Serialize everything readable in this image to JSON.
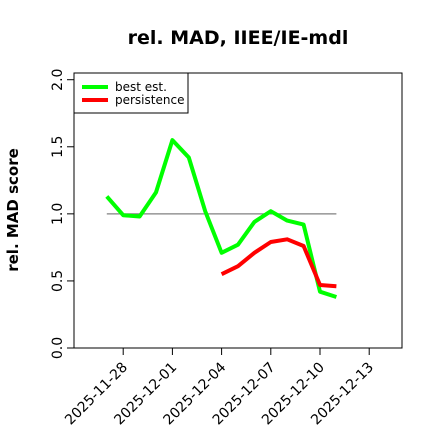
{
  "chart_data": {
    "type": "line",
    "title": "rel. MAD, IIEE/IE-mdl",
    "xlabel": "",
    "ylabel": "rel. MAD score",
    "ylim": [
      0,
      2.05
    ],
    "xlim": [
      "2025-11-25",
      "2025-12-15"
    ],
    "yticks": [
      "0.0",
      "0.5",
      "1.0",
      "1.5",
      "2.0"
    ],
    "xticks": [
      "2025-11-28",
      "2025-12-01",
      "2025-12-04",
      "2025-12-07",
      "2025-12-10",
      "2025-12-13"
    ],
    "reference_line": {
      "y": 1.0,
      "x_from": "2025-11-27",
      "x_to": "2025-12-11",
      "color": "#808080"
    },
    "grid": false,
    "legend_position": "top-left",
    "series": [
      {
        "name": "best est.",
        "color": "#00ff00",
        "x": [
          "2025-11-27",
          "2025-11-28",
          "2025-11-29",
          "2025-11-30",
          "2025-12-01",
          "2025-12-02",
          "2025-12-03",
          "2025-12-04",
          "2025-12-05",
          "2025-12-06",
          "2025-12-07",
          "2025-12-08",
          "2025-12-09",
          "2025-12-10",
          "2025-12-11"
        ],
        "values": [
          1.13,
          0.99,
          0.98,
          1.16,
          1.55,
          1.42,
          1.02,
          0.71,
          0.77,
          0.94,
          1.02,
          0.95,
          0.92,
          0.42,
          0.38
        ]
      },
      {
        "name": "persistence",
        "color": "#ff0000",
        "x": [
          "2025-12-04",
          "2025-12-05",
          "2025-12-06",
          "2025-12-07",
          "2025-12-08",
          "2025-12-09",
          "2025-12-10",
          "2025-12-11"
        ],
        "values": [
          0.55,
          0.61,
          0.71,
          0.79,
          0.81,
          0.76,
          0.47,
          0.46
        ]
      }
    ]
  }
}
